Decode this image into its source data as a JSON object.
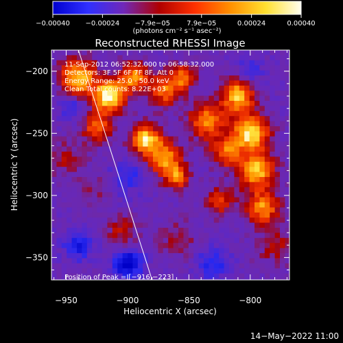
{
  "chart_data": {
    "type": "heatmap",
    "title": "Reconstructed RHESSI Image",
    "xlabel": "Heliocentric X (arcsec)",
    "ylabel": "Heliocentric Y (arcsec)",
    "xlim": [
      -962,
      -768
    ],
    "ylim": [
      -368,
      -183
    ],
    "x_ticks": [
      -950,
      -900,
      -850,
      -800
    ],
    "y_ticks": [
      -200,
      -250,
      -300,
      -350
    ],
    "x_tick_labels": [
      "−950",
      "−900",
      "−850",
      "−800"
    ],
    "y_tick_labels": [
      "−200",
      "−250",
      "−300",
      "−350"
    ],
    "colorbar": {
      "min": -0.0004,
      "max": 0.0004,
      "tick_values": [
        -0.0004,
        -0.00024,
        -7.9e-05,
        7.9e-05,
        0.00024,
        0.0004
      ],
      "tick_labels": [
        "−0.00040",
        "−0.00024",
        "−7.9e−05",
        "7.9e−05",
        "0.00024",
        "0.00040"
      ],
      "unit_label": "(photons cm⁻² s⁻¹ asec⁻²)",
      "colors": [
        "#0000d0",
        "#3030ff",
        "#7028b8",
        "#b00000",
        "#ff3000",
        "#ff9000",
        "#ffe030",
        "#fffff0"
      ]
    },
    "annotations": [
      "11-Sep-2012 06:52:32.000 to 06:58:32.000",
      "Detectors: 3F 5F 6F 7F 8F, Att 0",
      "Energy Range: 25.0 - 50.0 keV",
      "Clean    Total counts: 8.22E+03"
    ],
    "peak_label": "Position of Peak = [−916,−223]",
    "peak": [
      -916,
      -223
    ],
    "limb_line": [
      [
        -940,
        -183
      ],
      [
        -880,
        -368
      ]
    ],
    "blobs": [
      {
        "x": -915,
        "y": -220,
        "a": 1.0,
        "s": 9
      },
      {
        "x": -940,
        "y": -205,
        "a": 0.85,
        "s": 10
      },
      {
        "x": -925,
        "y": -245,
        "a": 0.6,
        "s": 8
      },
      {
        "x": -895,
        "y": -205,
        "a": 0.7,
        "s": 8
      },
      {
        "x": -870,
        "y": -215,
        "a": 0.6,
        "s": 9
      },
      {
        "x": -855,
        "y": -205,
        "a": 0.55,
        "s": 7
      },
      {
        "x": -885,
        "y": -255,
        "a": 0.9,
        "s": 8
      },
      {
        "x": -870,
        "y": -270,
        "a": 0.75,
        "s": 9
      },
      {
        "x": -860,
        "y": -285,
        "a": 0.6,
        "s": 7
      },
      {
        "x": -835,
        "y": -240,
        "a": 0.7,
        "s": 10
      },
      {
        "x": -810,
        "y": -220,
        "a": 0.85,
        "s": 9
      },
      {
        "x": -800,
        "y": -250,
        "a": 0.95,
        "s": 10
      },
      {
        "x": -795,
        "y": -280,
        "a": 0.85,
        "s": 10
      },
      {
        "x": -820,
        "y": -265,
        "a": 0.6,
        "s": 8
      },
      {
        "x": -790,
        "y": -310,
        "a": 0.7,
        "s": 9
      },
      {
        "x": -825,
        "y": -305,
        "a": 0.45,
        "s": 8
      },
      {
        "x": -950,
        "y": -270,
        "a": 0.25,
        "s": 10
      },
      {
        "x": -930,
        "y": -295,
        "a": 0.2,
        "s": 9
      },
      {
        "x": -905,
        "y": -330,
        "a": 0.3,
        "s": 9
      },
      {
        "x": -860,
        "y": -335,
        "a": 0.25,
        "s": 10
      },
      {
        "x": -780,
        "y": -340,
        "a": 0.3,
        "s": 10
      },
      {
        "x": -940,
        "y": -340,
        "a": -0.45,
        "s": 8
      },
      {
        "x": -900,
        "y": -355,
        "a": -0.7,
        "s": 8
      },
      {
        "x": -945,
        "y": -230,
        "a": -0.3,
        "s": 7
      },
      {
        "x": -830,
        "y": -355,
        "a": -0.35,
        "s": 9
      },
      {
        "x": -900,
        "y": -285,
        "a": -0.3,
        "s": 9
      },
      {
        "x": -800,
        "y": -200,
        "a": -0.25,
        "s": 7
      }
    ]
  },
  "footer": {
    "timestamp": "14−May−2022 11:00"
  }
}
